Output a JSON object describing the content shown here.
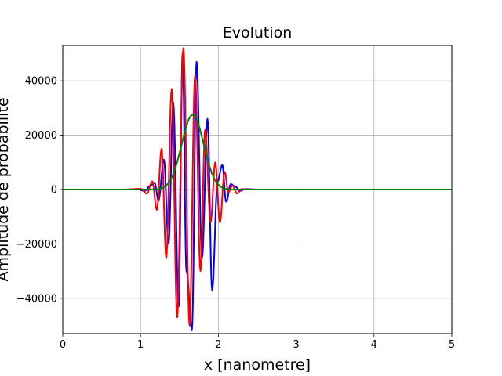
{
  "chart_data": {
    "type": "line",
    "title": "Evolution",
    "xlabel": "x [nanometre]",
    "ylabel": "Amplitude de probabilité",
    "xlim": [
      0,
      5
    ],
    "ylim": [
      -53000,
      53000
    ],
    "x_ticks": [
      "0",
      "1",
      "2",
      "3",
      "4",
      "5"
    ],
    "y_ticks": [
      "−40000",
      "−20000",
      "0",
      "20000",
      "40000"
    ],
    "grid": true,
    "legend": "none",
    "series": [
      {
        "color": "#0000ff",
        "x": [
          0,
          0.8,
          0.95,
          1.05,
          1.13,
          1.18,
          1.23,
          1.3,
          1.36,
          1.42,
          1.49,
          1.54,
          1.59,
          1.66,
          1.72,
          1.79,
          1.86,
          1.92,
          1.99,
          2.05,
          2.1,
          2.16,
          2.22,
          2.28,
          2.35,
          2.5,
          5
        ],
        "y": [
          0,
          0,
          200,
          -500,
          1500,
          2500,
          -4000,
          11000,
          -20000,
          32000,
          -43000,
          50000,
          -30000,
          -51500,
          47000,
          -25000,
          26000,
          -37000,
          3000,
          9000,
          -4500,
          2000,
          1000,
          -500,
          200,
          0,
          0
        ]
      },
      {
        "color": "#ff0000",
        "x": [
          0,
          0.8,
          1.0,
          1.08,
          1.15,
          1.21,
          1.27,
          1.33,
          1.4,
          1.47,
          1.55,
          1.63,
          1.7,
          1.77,
          1.83,
          1.9,
          1.96,
          2.02,
          2.08,
          2.13,
          2.18,
          2.24,
          2.3,
          2.4,
          5
        ],
        "y": [
          0,
          0,
          300,
          -1500,
          3000,
          -7500,
          15000,
          -25000,
          37000,
          -47000,
          52000,
          -50000,
          42000,
          -30000,
          22000,
          -12000,
          10000,
          -12000,
          6500,
          -1000,
          1500,
          -1500,
          200,
          0,
          0
        ]
      },
      {
        "color": "#008000",
        "type": "envelope",
        "center": 1.67,
        "width": 0.2,
        "peak": 27500,
        "range": [
          0,
          5
        ]
      }
    ]
  }
}
